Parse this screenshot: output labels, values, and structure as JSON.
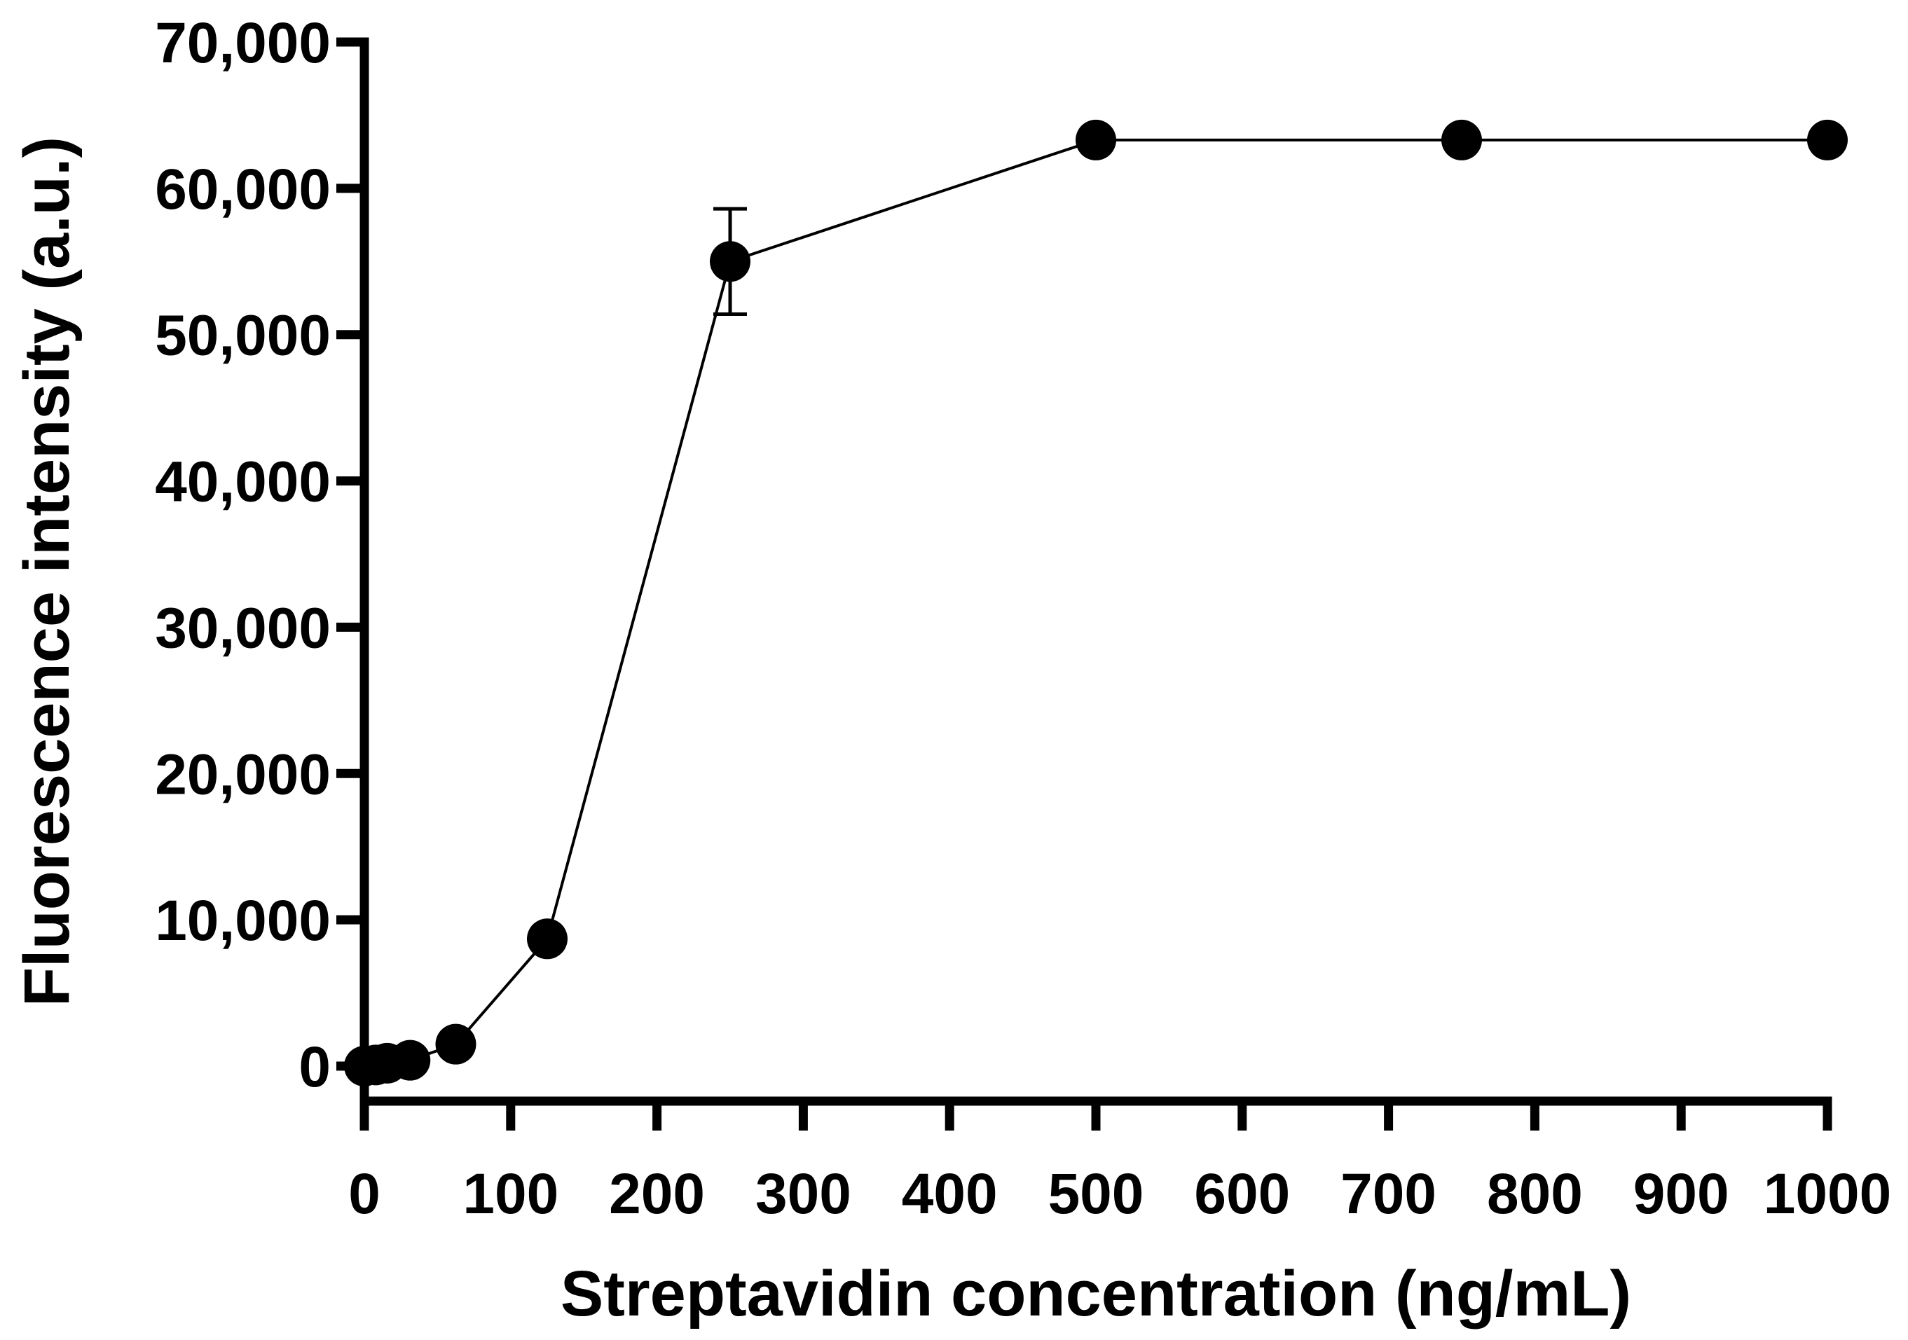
{
  "chart_data": {
    "type": "line",
    "title": "",
    "xlabel": "Streptavidin concentration (ng/mL)",
    "ylabel": "Fluorescence intensity (a.u.)",
    "xlim": [
      0,
      1000
    ],
    "ylim": [
      0,
      70000
    ],
    "x_ticks": [
      0,
      100,
      200,
      300,
      400,
      500,
      600,
      700,
      800,
      900,
      1000
    ],
    "y_ticks": [
      0,
      10000,
      20000,
      30000,
      40000,
      50000,
      60000,
      70000
    ],
    "x_tick_labels": [
      "0",
      "100",
      "200",
      "300",
      "400",
      "500",
      "600",
      "700",
      "800",
      "900",
      "1000"
    ],
    "y_tick_labels": [
      "0",
      "10,000",
      "20,000",
      "30,000",
      "40,000",
      "50,000",
      "60,000",
      "70,000"
    ],
    "grid": false,
    "legend": "none",
    "series": [
      {
        "name": "Fluorescence",
        "x": [
          0,
          7.8,
          15.6,
          31.25,
          62.5,
          125,
          250,
          500,
          750,
          1000
        ],
        "y": [
          0,
          80,
          200,
          400,
          1500,
          8700,
          55000,
          63300,
          63300,
          63300
        ],
        "error": [
          0,
          0,
          0,
          0,
          0,
          0,
          3600,
          0,
          0,
          0
        ]
      }
    ],
    "colors": {
      "line": "#000000",
      "marker": "#000000",
      "axis": "#000000"
    }
  }
}
